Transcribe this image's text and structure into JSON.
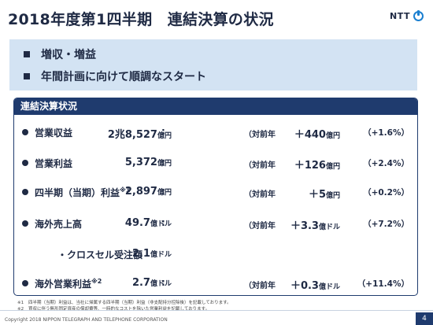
{
  "title": "2018年度第1四半期　連結決算の状況",
  "logo_text": "NTT",
  "highlights": [
    "増収・増益",
    "年間計画に向けて順調なスタート"
  ],
  "panel_title": "連結決算状況",
  "yoy_label": "（対前年",
  "rows": [
    {
      "label": "営業収益",
      "sup": "",
      "amount_main": "2兆8,527",
      "amount_unit": "億円",
      "change_main": "＋440",
      "change_unit": "億円",
      "pct": "（+1.6%）"
    },
    {
      "label": "営業利益",
      "sup": "",
      "amount_main": "5,372",
      "amount_unit": "億円",
      "change_main": "＋126",
      "change_unit": "億円",
      "pct": "（+2.4%）"
    },
    {
      "label": "四半期（当期）利益",
      "sup": "※1",
      "amount_main": "2,897",
      "amount_unit": "億円",
      "change_main": "＋5",
      "change_unit": "億円",
      "pct": "（+0.2%）"
    },
    {
      "label": "海外売上高",
      "sup": "",
      "amount_main": "49.7",
      "amount_unit": "億ドル",
      "change_main": "＋3.3",
      "change_unit": "億ドル",
      "pct": "（+7.2%）"
    },
    {
      "label": "・クロスセル受注額",
      "sup": "",
      "amount_main": "2.1",
      "amount_unit": "億ドル",
      "change_main": "",
      "change_unit": "",
      "pct": ""
    },
    {
      "label": "海外営業利益",
      "sup": "※2",
      "amount_main": "2.7",
      "amount_unit": "億ドル",
      "change_main": "＋0.3",
      "change_unit": "億ドル",
      "pct": "（+11.4%）"
    }
  ],
  "footnotes": [
    {
      "mark": "※1",
      "text": "四半期（当期）利益は、当社に帰属する四半期（当期）利益（非支配持分控除後）を記載しております。"
    },
    {
      "mark": "※2",
      "text": "買収に伴う無形固定資産の償却費等、一時的なコストを除いた営業利益を記載しております。"
    }
  ],
  "copyright": "Copyright 2018 NIPPON TELEGRAPH AND TELEPHONE CORPORATION",
  "page_number": "4"
}
